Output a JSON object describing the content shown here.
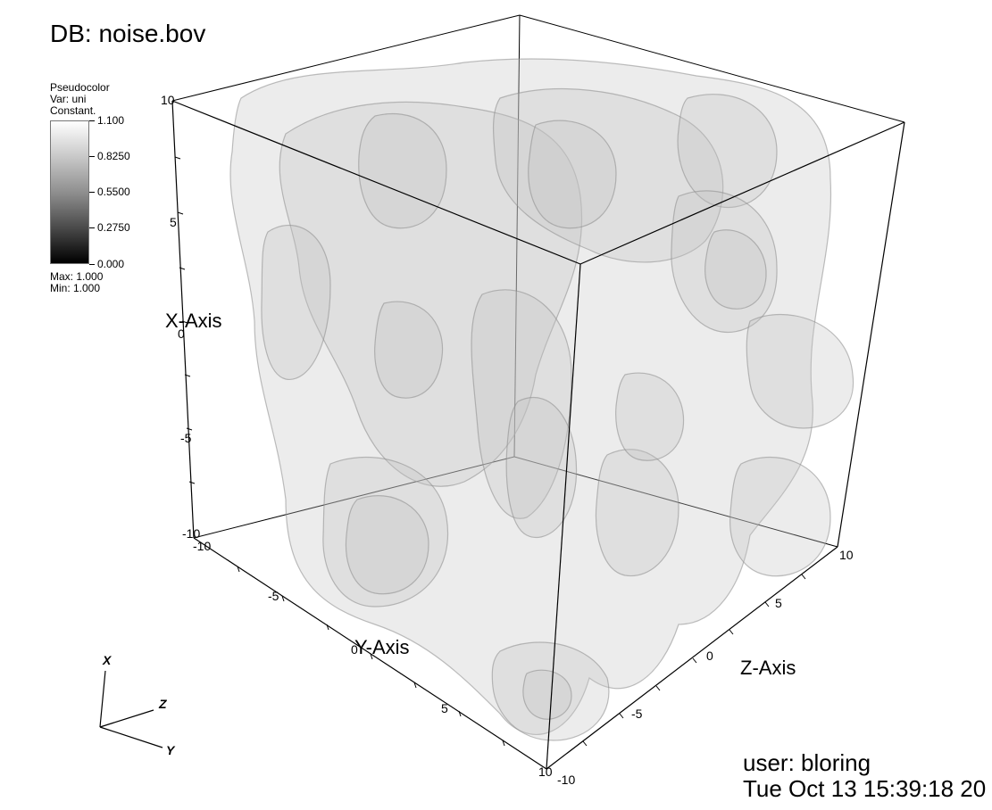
{
  "header": {
    "db_label": "DB: noise.bov"
  },
  "legend": {
    "plot_type": "Pseudocolor",
    "var_label": "Var: uni",
    "constant_label": "Constant.",
    "ticks": [
      "1.100",
      "0.8250",
      "0.5500",
      "0.2750",
      "0.000"
    ],
    "max_label": "Max:  1.000",
    "min_label": "Min:  1.000"
  },
  "axes": {
    "x_title": "X-Axis",
    "y_title": "Y-Axis",
    "z_title": "Z-Axis",
    "x_ticks": [
      "10",
      "5",
      "0",
      "-5",
      "-10"
    ],
    "y_ticks": [
      "-10",
      "-5",
      "0",
      "5",
      "10"
    ],
    "z_ticks": [
      "10",
      "5",
      "0",
      "-5",
      "-10"
    ]
  },
  "triad": {
    "x": "X",
    "y": "Y",
    "z": "Z"
  },
  "footer": {
    "user": "user: bloring",
    "timestamp": "Tue Oct 13 15:39:18 20"
  },
  "colors": {
    "isosurface": "#bdbdbd",
    "box_line": "#000000"
  }
}
